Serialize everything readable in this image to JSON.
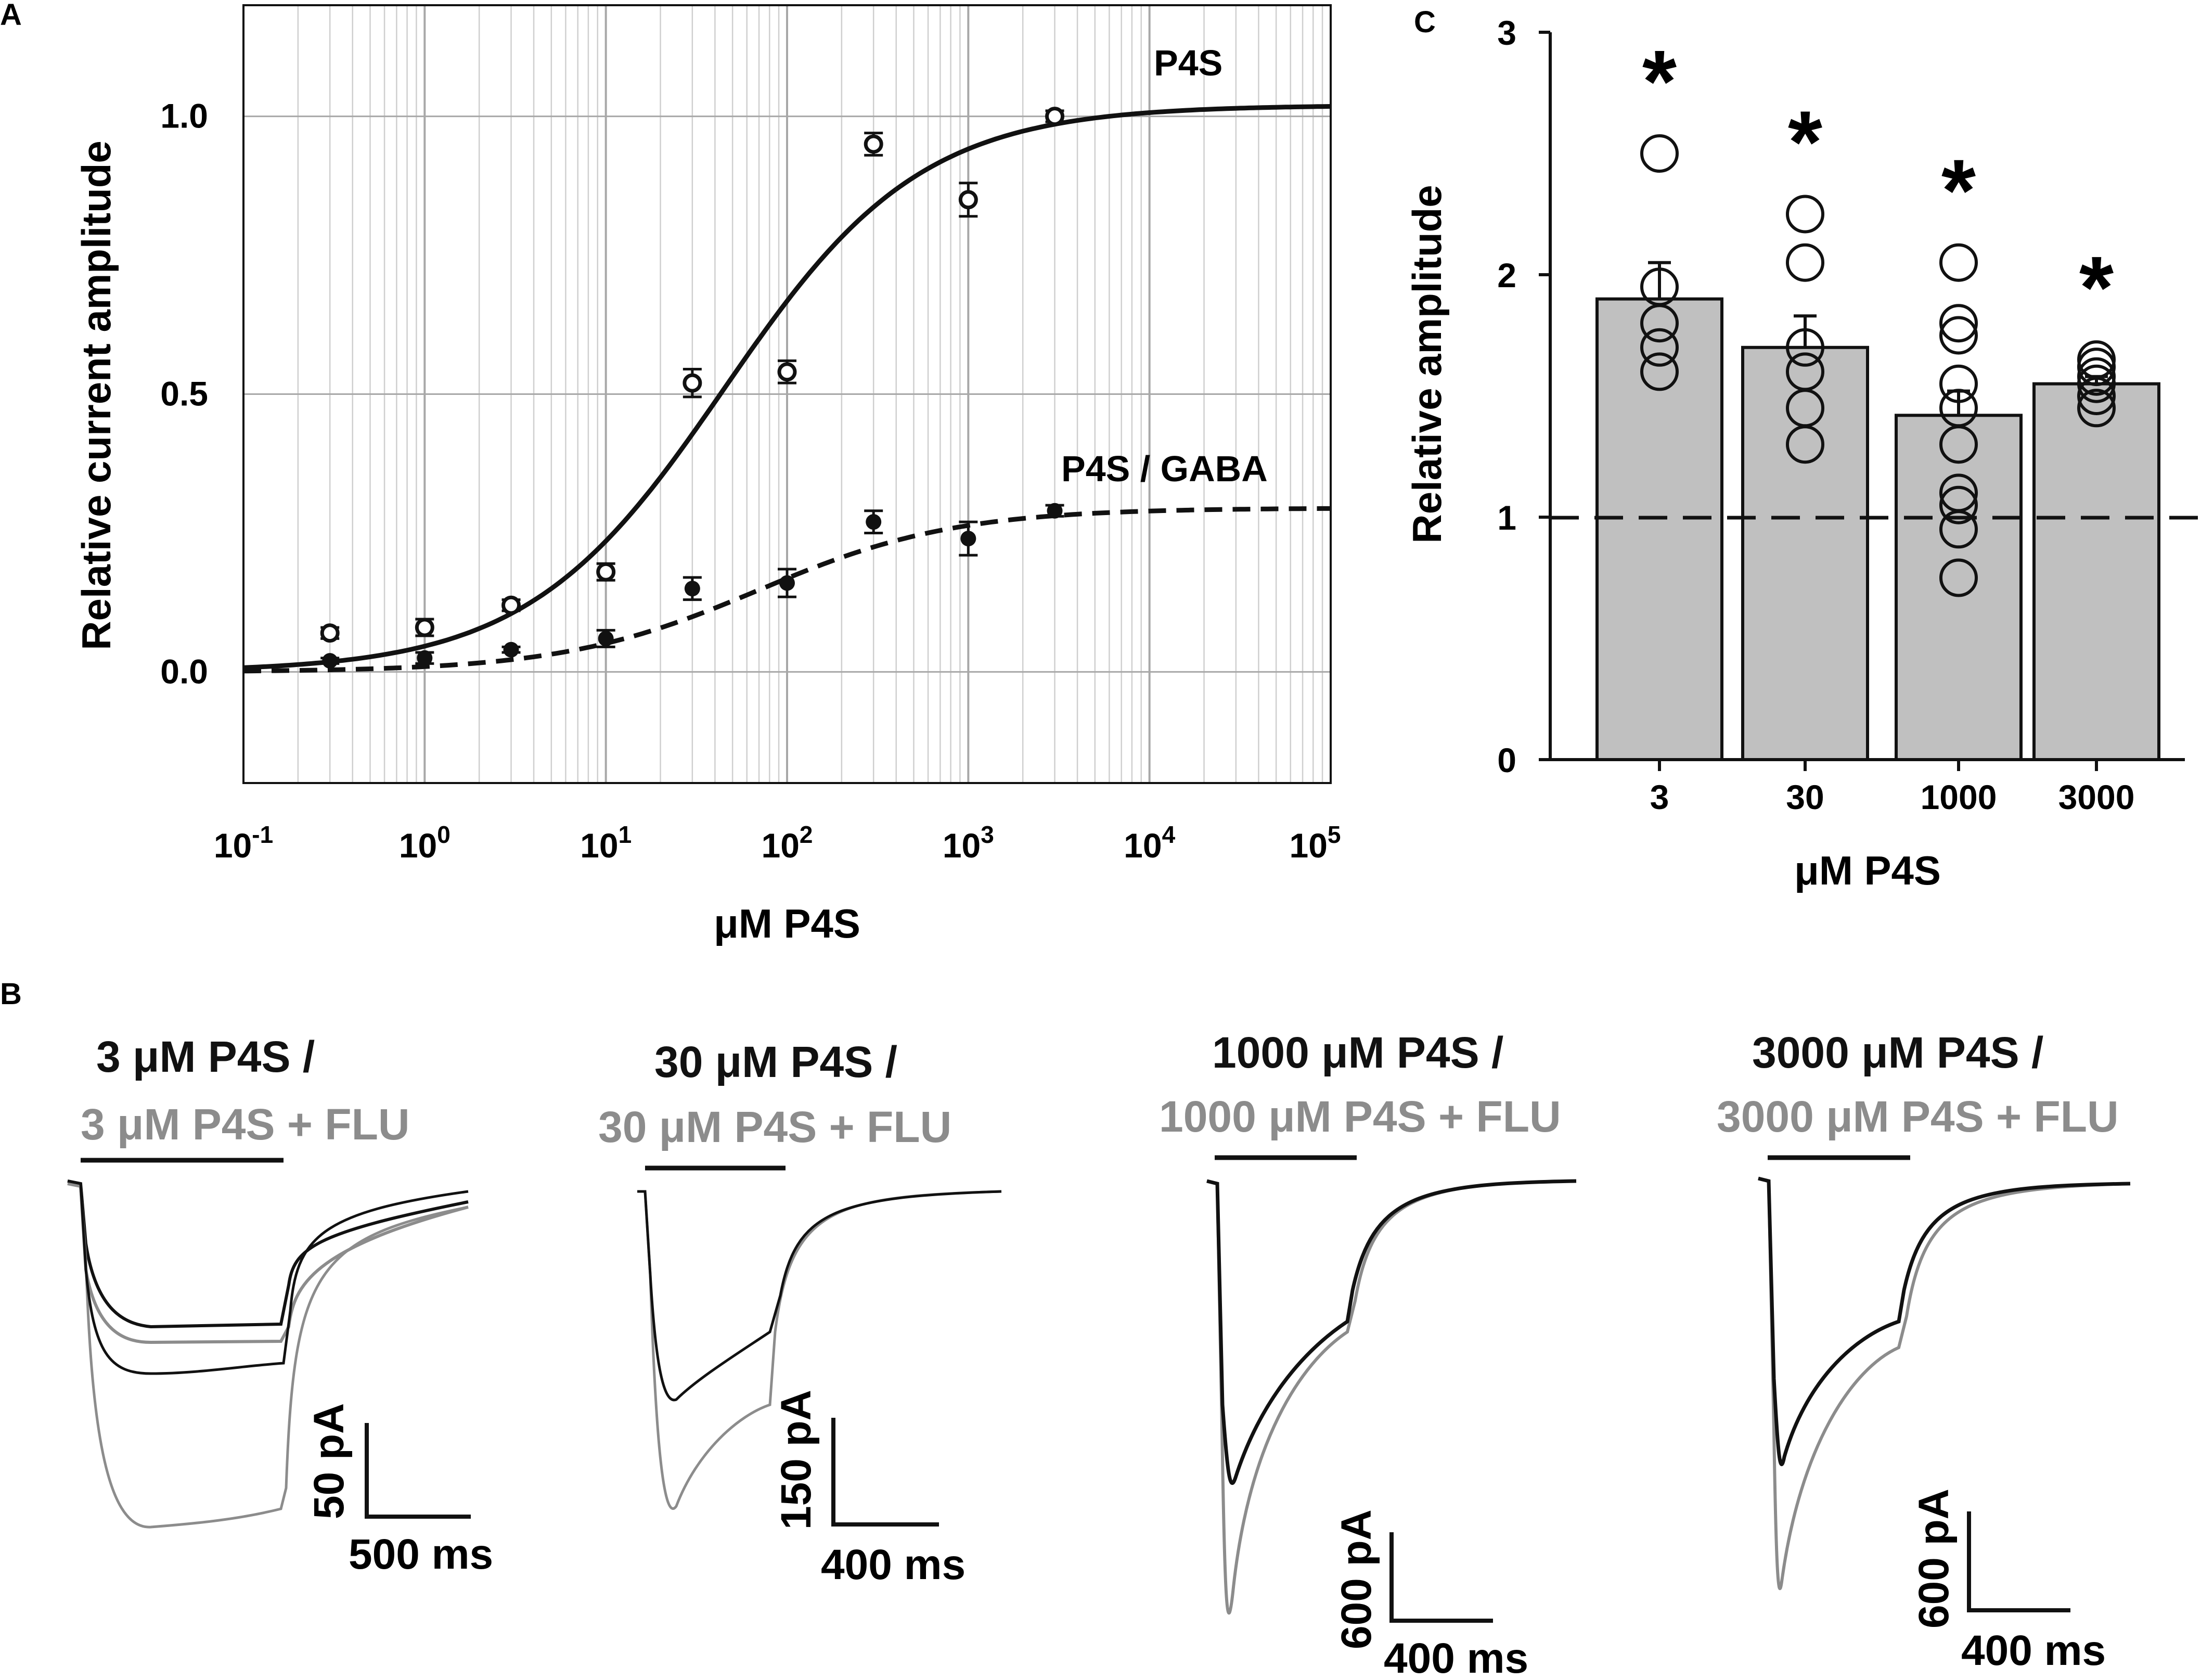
{
  "colors": {
    "black": "#111111",
    "gray": "#8c8c8c",
    "bar": "#c0c0c0",
    "grid": "#cfcfcf"
  },
  "chart_data": [
    {
      "panel": "A",
      "type": "scatter",
      "xscale": "log",
      "xlim": [
        0.1,
        100000
      ],
      "ylim": [
        -0.2,
        1.2
      ],
      "xlabel": "μM P4S",
      "ylabel": "Relative current amplitude",
      "x_ticks": [
        {
          "base": "10",
          "exp": "-1"
        },
        {
          "base": "10",
          "exp": "0"
        },
        {
          "base": "10",
          "exp": "1"
        },
        {
          "base": "10",
          "exp": "2"
        },
        {
          "base": "10",
          "exp": "3"
        },
        {
          "base": "10",
          "exp": "4"
        },
        {
          "base": "10",
          "exp": "5"
        }
      ],
      "y_ticks": [
        "0.0",
        "0.5",
        "1.0"
      ],
      "series": [
        {
          "name": "P4S",
          "marker": "open",
          "line": "solid",
          "x": [
            0.3,
            1,
            3,
            10,
            30,
            100,
            300,
            1000,
            3000
          ],
          "y": [
            0.07,
            0.08,
            0.12,
            0.18,
            0.52,
            0.54,
            0.95,
            0.85,
            1.0
          ],
          "err": [
            0.01,
            0.015,
            0.01,
            0.015,
            0.025,
            0.02,
            0.02,
            0.03,
            0.01
          ],
          "fit": {
            "bottom": 0.0,
            "top": 1.02,
            "ec50": 45,
            "hill": 0.8
          }
        },
        {
          "name": "P4S / GABA",
          "marker": "filled",
          "line": "dashed",
          "x": [
            0.3,
            1,
            3,
            10,
            30,
            100,
            300,
            1000,
            3000
          ],
          "y": [
            0.02,
            0.025,
            0.04,
            0.06,
            0.15,
            0.16,
            0.27,
            0.24,
            0.29
          ],
          "err": [
            0.005,
            0.01,
            0.005,
            0.015,
            0.02,
            0.025,
            0.02,
            0.03,
            0.01
          ],
          "fit": {
            "bottom": 0.0,
            "top": 0.295,
            "ec50": 70,
            "hill": 0.8
          }
        }
      ]
    },
    {
      "panel": "C",
      "type": "bar",
      "categories": [
        "3",
        "30",
        "1000",
        "3000"
      ],
      "values": [
        1.9,
        1.7,
        1.42,
        1.55
      ],
      "sem": [
        0.15,
        0.13,
        0.1,
        0.03
      ],
      "significance": [
        "*",
        "*",
        "*",
        "*"
      ],
      "points": [
        [
          1.6,
          1.7,
          1.8,
          1.95,
          2.5
        ],
        [
          1.3,
          1.45,
          1.6,
          1.7,
          2.05,
          2.25
        ],
        [
          0.75,
          0.95,
          1.05,
          1.1,
          1.3,
          1.45,
          1.55,
          1.75,
          1.8,
          2.05
        ],
        [
          1.45,
          1.5,
          1.55,
          1.58,
          1.62,
          1.65
        ]
      ],
      "reference_line": 1,
      "ylim": [
        0,
        3
      ],
      "y_ticks": [
        "0",
        "1",
        "2",
        "3"
      ],
      "xlabel": "μM P4S",
      "ylabel": "Relative amplitude"
    }
  ],
  "panels": {
    "a": "A",
    "b": "B",
    "c": "C"
  },
  "curve_labels": {
    "p4s": "P4S",
    "p4s_gaba": "P4S / GABA"
  },
  "traces": [
    {
      "black_label": "3 μM P4S /",
      "gray_label": "3 μM P4S + FLU",
      "scale_current": "50 pA",
      "scale_time": "500 ms"
    },
    {
      "black_label": "30 μM P4S /",
      "gray_label": "30 μM P4S + FLU",
      "scale_current": "150 pA",
      "scale_time": "400 ms"
    },
    {
      "black_label": "1000 μM P4S /",
      "gray_label": "1000 μM P4S + FLU",
      "scale_current": "600 pA",
      "scale_time": "400 ms"
    },
    {
      "black_label": "3000 μM P4S /",
      "gray_label": "3000 μM P4S + FLU",
      "scale_current": "600 pA",
      "scale_time": "400 ms"
    }
  ]
}
